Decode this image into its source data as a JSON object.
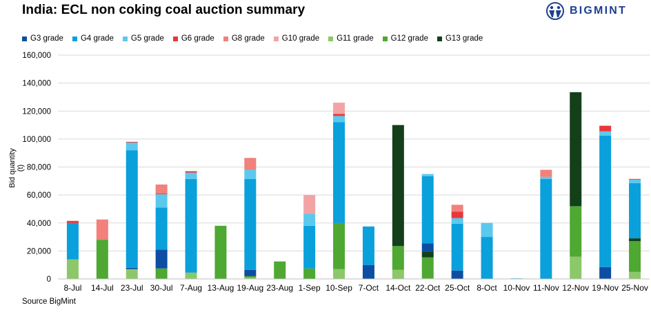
{
  "header": {
    "title": "India: ECL non coking coal auction summary"
  },
  "logo": {
    "text": "BIGMINT"
  },
  "footer": {
    "source": "Source BigMint"
  },
  "chart_data": {
    "type": "bar",
    "stacked": true,
    "title": "India: ECL non coking coal auction summary",
    "xlabel": "",
    "ylabel": "Bid quantity (t)",
    "ylim": [
      0,
      160000
    ],
    "yticks": [
      0,
      20000,
      40000,
      60000,
      80000,
      100000,
      120000,
      140000,
      160000
    ],
    "ytick_labels": [
      "0",
      "20,000",
      "40,000",
      "60,000",
      "80,000",
      "100,000",
      "120,000",
      "140,000",
      "160,000"
    ],
    "grid": true,
    "legend_position": "top-left",
    "categories": [
      "8-Jul",
      "14-Jul",
      "23-Jul",
      "30-Jul",
      "7-Aug",
      "13-Aug",
      "19-Aug",
      "23-Aug",
      "1-Sep",
      "10-Sep",
      "7-Oct",
      "14-Oct",
      "22-Oct",
      "25-Oct",
      "8-Oct",
      "10-Nov",
      "11-Nov",
      "12-Nov",
      "19-Nov",
      "25-Nov"
    ],
    "series": [
      {
        "name": "G11 grade",
        "color": "#8cc86a",
        "values": [
          14000,
          0,
          7000,
          0,
          4500,
          0,
          1000,
          0,
          0,
          7000,
          0,
          6500,
          500,
          0,
          0,
          0,
          0,
          16000,
          0,
          5000
        ]
      },
      {
        "name": "G12 grade",
        "color": "#4ea832",
        "values": [
          0,
          28000,
          0,
          7500,
          0,
          38000,
          1000,
          12500,
          7500,
          33000,
          0,
          17000,
          15000,
          0,
          0,
          0,
          0,
          36000,
          0,
          22000
        ]
      },
      {
        "name": "G13 grade",
        "color": "#133f1b",
        "values": [
          0,
          0,
          0,
          0,
          0,
          0,
          0,
          0,
          0,
          0,
          0,
          86500,
          4000,
          0,
          0,
          0,
          0,
          81500,
          0,
          2000
        ]
      },
      {
        "name": "G3 grade",
        "color": "#0d4ea3",
        "values": [
          0,
          0,
          1000,
          13500,
          0,
          0,
          4500,
          0,
          0,
          0,
          10000,
          0,
          6000,
          6000,
          0,
          0,
          0,
          0,
          8500,
          0
        ]
      },
      {
        "name": "G4 grade",
        "color": "#0aa0dc",
        "values": [
          26000,
          0,
          84000,
          30000,
          67000,
          0,
          65000,
          0,
          30500,
          72000,
          27500,
          0,
          48000,
          33500,
          30000,
          0,
          71500,
          0,
          94000,
          39500
        ]
      },
      {
        "name": "G5 grade",
        "color": "#5bc8ee",
        "values": [
          0,
          0,
          5500,
          9500,
          4500,
          0,
          6500,
          0,
          8500,
          4500,
          0,
          0,
          1500,
          4000,
          10000,
          500,
          1500,
          0,
          3000,
          2500
        ]
      },
      {
        "name": "G6 grade",
        "color": "#e8373a",
        "values": [
          1500,
          0,
          500,
          500,
          1000,
          0,
          0,
          0,
          0,
          1500,
          0,
          0,
          0,
          4500,
          0,
          0,
          0,
          0,
          4000,
          500
        ]
      },
      {
        "name": "G8 grade",
        "color": "#f2807b",
        "values": [
          0,
          14500,
          0,
          6500,
          0,
          0,
          8500,
          0,
          0,
          0,
          0,
          0,
          0,
          5000,
          0,
          0,
          5000,
          0,
          0,
          0
        ]
      },
      {
        "name": "G10 grade",
        "color": "#f2a4a4",
        "values": [
          0,
          0,
          0,
          0,
          0,
          0,
          0,
          0,
          13500,
          8000,
          0,
          0,
          0,
          0,
          0,
          0,
          0,
          0,
          0,
          0
        ]
      }
    ],
    "legend_order": [
      "G3 grade",
      "G4 grade",
      "G5 grade",
      "G6 grade",
      "G8 grade",
      "G10 grade",
      "G11 grade",
      "G12 grade",
      "G13 grade"
    ]
  }
}
